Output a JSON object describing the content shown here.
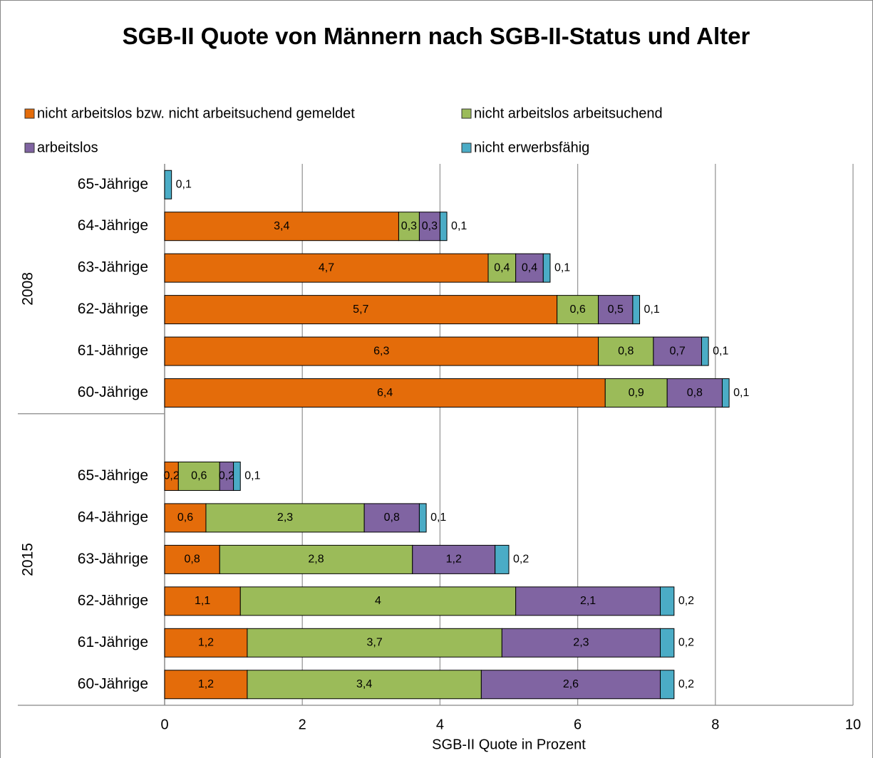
{
  "chart_data": {
    "type": "stacked-bar-horizontal",
    "title": "SGB-II Quote von Männern nach SGB-II-Status und Alter",
    "x_label": "SGB-II Quote in Prozent",
    "groups": [
      "2008",
      "2015"
    ],
    "categories": [
      "65-Jährige",
      "64-Jährige",
      "63-Jährige",
      "62-Jährige",
      "61-Jährige",
      "60-Jährige",
      null,
      "65-Jährige",
      "64-Jährige",
      "63-Jährige",
      "62-Jährige",
      "61-Jährige",
      "60-Jährige"
    ],
    "series": [
      {
        "name": "nicht arbeitslos bzw. nicht arbeitsuchend gemeldet",
        "color": "#E46C0A",
        "values": [
          null,
          3.4,
          4.7,
          5.7,
          6.3,
          6.4,
          null,
          0.2,
          0.6,
          0.8,
          1.1,
          1.2,
          1.2
        ],
        "value_labels": [
          null,
          "3,4",
          "4,7",
          "5,7",
          "6,3",
          "6,4",
          null,
          "0,2",
          "0,6",
          "0,8",
          "1,1",
          "1,2",
          "1,2"
        ]
      },
      {
        "name": "nicht arbeitslos arbeitsuchend",
        "color": "#9BBB59",
        "values": [
          null,
          0.3,
          0.4,
          0.6,
          0.8,
          0.9,
          null,
          0.6,
          2.3,
          2.8,
          4,
          3.7,
          3.4
        ],
        "value_labels": [
          null,
          "0,3",
          "0,4",
          "0,6",
          "0,8",
          "0,9",
          null,
          "0,6",
          "2,3",
          "2,8",
          "4",
          "3,7",
          "3,4"
        ]
      },
      {
        "name": "arbeitslos",
        "color": "#8064A2",
        "values": [
          null,
          0.3,
          0.4,
          0.5,
          0.7,
          0.8,
          null,
          0.2,
          0.8,
          1.2,
          2.1,
          2.3,
          2.6
        ],
        "value_labels": [
          null,
          "0,3",
          "0,4",
          "0,5",
          "0,7",
          "0,8",
          null,
          "0,2",
          "0,8",
          "1,2",
          "2,1",
          "2,3",
          "2,6"
        ]
      },
      {
        "name": "nicht erwerbsfähig",
        "color": "#4BACC6",
        "values": [
          0.1,
          0.1,
          0.1,
          0.1,
          0.1,
          0.1,
          null,
          0.1,
          0.1,
          0.2,
          0.2,
          0.2,
          0.2
        ],
        "value_labels": [
          "0,1",
          "0,1",
          "0,1",
          "0,1",
          "0,1",
          "0,1",
          null,
          "0,1",
          "0,1",
          "0,2",
          "0,2",
          "0,2",
          "0,2"
        ]
      }
    ],
    "xlim": [
      0,
      10
    ],
    "xticks": [
      0,
      2,
      4,
      6,
      8,
      10
    ],
    "grid": true,
    "legend": "top"
  }
}
